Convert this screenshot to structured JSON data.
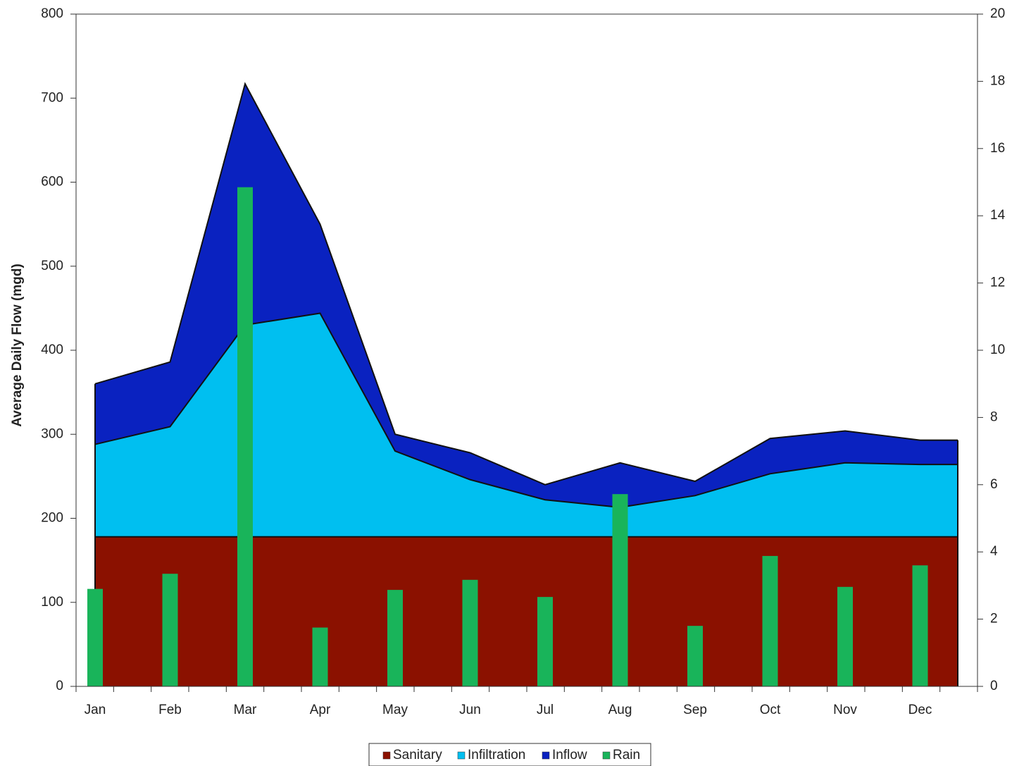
{
  "chart_data": {
    "type": "area",
    "stacked": true,
    "categories": [
      "Jan",
      "Feb",
      "Mar",
      "Apr",
      "May",
      "Jun",
      "Jul",
      "Aug",
      "Sep",
      "Oct",
      "Nov",
      "Dec"
    ],
    "ylabel": "Average Daily Flow (mgd)",
    "ylim": [
      0,
      800
    ],
    "yticks": [
      0,
      100,
      200,
      300,
      400,
      500,
      600,
      700,
      800
    ],
    "y2lim": [
      0,
      20
    ],
    "y2ticks": [
      0,
      2,
      4,
      6,
      8,
      10,
      12,
      14,
      16,
      18,
      20
    ],
    "legend": "bottom",
    "series": [
      {
        "name": "Sanitary",
        "color": "#8b1100",
        "values": [
          178,
          178,
          178,
          178,
          178,
          178,
          178,
          178,
          178,
          178,
          178,
          178
        ]
      },
      {
        "name": "Infiltration",
        "color": "#00bff0",
        "values": [
          110,
          131,
          252,
          266,
          102,
          68,
          44,
          35,
          49,
          75,
          88,
          86
        ]
      },
      {
        "name": "Inflow",
        "color": "#0a22c0",
        "values": [
          72,
          77,
          287,
          106,
          20,
          32,
          18,
          53,
          17,
          42,
          38,
          29
        ]
      },
      {
        "name": "Rain",
        "color": "#19b45a",
        "type": "bar",
        "axis": "y2",
        "values": [
          2.9,
          3.35,
          14.85,
          1.75,
          2.87,
          3.17,
          2.66,
          5.72,
          1.8,
          3.88,
          2.96,
          3.6
        ]
      }
    ]
  }
}
